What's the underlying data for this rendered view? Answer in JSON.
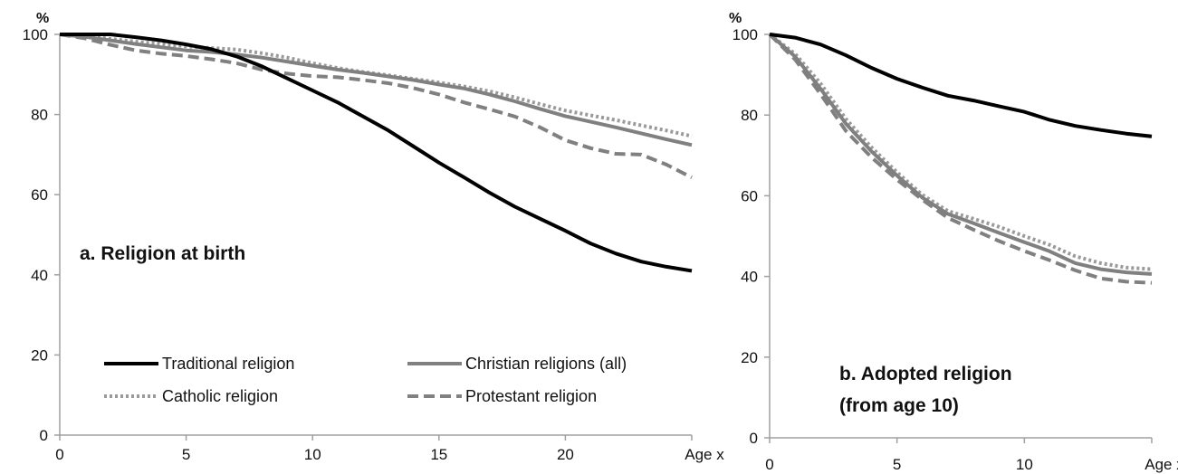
{
  "chart_data": [
    {
      "type": "line",
      "title": "a. Religion at birth",
      "xlabel": "Age x",
      "ylabel": "%",
      "xlim": [
        0,
        25
      ],
      "ylim": [
        0,
        100
      ],
      "xticks": [
        "0",
        "5",
        "10",
        "15",
        "20",
        "Age x"
      ],
      "yticks": [
        "0",
        "20",
        "40",
        "60",
        "80",
        "100"
      ],
      "grid": false,
      "legend_position": "bottom",
      "series": [
        {
          "name": "Traditional religion",
          "style": "solid",
          "color": "#000000",
          "x": [
            0,
            1,
            2,
            3,
            4,
            5,
            6,
            7,
            8,
            9,
            10,
            11,
            12,
            13,
            14,
            15,
            16,
            17,
            18,
            19,
            20,
            21,
            22,
            23,
            24,
            25
          ],
          "y": [
            100,
            100,
            100,
            99.3,
            98.5,
            97.5,
            96.3,
            94.5,
            92,
            89,
            86,
            83,
            79.5,
            76,
            72,
            68,
            64.3,
            60.5,
            57,
            54,
            51,
            47.8,
            45.3,
            43.3,
            42,
            41
          ]
        },
        {
          "name": "Christian religions (all)",
          "style": "solid",
          "color": "#808080",
          "x": [
            0,
            1,
            2,
            3,
            4,
            5,
            6,
            7,
            8,
            9,
            10,
            11,
            12,
            13,
            14,
            15,
            16,
            17,
            18,
            19,
            20,
            21,
            22,
            23,
            24,
            25
          ],
          "y": [
            100,
            99.4,
            98.5,
            97.6,
            96.8,
            96,
            95.6,
            95,
            94.2,
            93.2,
            92.2,
            91.2,
            90.4,
            89.5,
            88.6,
            87.5,
            86.5,
            85,
            83.3,
            81.4,
            79.6,
            78.2,
            76.8,
            75.3,
            73.8,
            72.4
          ]
        },
        {
          "name": "Catholic religion",
          "style": "dotted",
          "color": "#9a9a9a",
          "x": [
            0,
            1,
            2,
            3,
            4,
            5,
            6,
            7,
            8,
            9,
            10,
            11,
            12,
            13,
            14,
            15,
            16,
            17,
            18,
            19,
            20,
            21,
            22,
            23,
            24,
            25
          ],
          "y": [
            100,
            99.6,
            98.9,
            98.2,
            97.6,
            97,
            96.6,
            96.2,
            95.3,
            94.2,
            92.8,
            91.6,
            90.6,
            89.8,
            88.9,
            88,
            87,
            85.8,
            84.3,
            82.6,
            81,
            79.8,
            78.6,
            77.3,
            76,
            74.6
          ]
        },
        {
          "name": "Protestant religion",
          "style": "dashed",
          "color": "#808080",
          "x": [
            0,
            1,
            2,
            3,
            4,
            5,
            6,
            7,
            8,
            9,
            10,
            11,
            12,
            13,
            14,
            15,
            16,
            17,
            18,
            19,
            20,
            21,
            22,
            23,
            24,
            25
          ],
          "y": [
            100,
            99,
            97.4,
            96,
            95.2,
            94.6,
            93.8,
            92.8,
            91.2,
            90.2,
            89.6,
            89.3,
            88.6,
            87.8,
            86.6,
            85,
            83,
            81.3,
            79.5,
            76.8,
            73.6,
            71.6,
            70.2,
            70,
            67.5,
            64.3
          ]
        }
      ]
    },
    {
      "type": "line",
      "title": "b. Adopted religion (from age 10)",
      "title_lines": [
        "b. Adopted religion",
        "(from age 10)"
      ],
      "xlabel": "Age x",
      "ylabel": "%",
      "xlim": [
        0,
        15
      ],
      "ylim": [
        0,
        100
      ],
      "xticks": [
        "0",
        "5",
        "10",
        "Age x"
      ],
      "yticks": [
        "0",
        "20",
        "40",
        "60",
        "80",
        "100"
      ],
      "grid": false,
      "series": [
        {
          "name": "Traditional religion",
          "style": "solid",
          "color": "#000000",
          "x": [
            0,
            1,
            2,
            3,
            4,
            5,
            6,
            7,
            8,
            9,
            10,
            11,
            12,
            13,
            14,
            15
          ],
          "y": [
            100,
            99.2,
            97.5,
            94.8,
            91.7,
            89,
            86.8,
            84.8,
            83.6,
            82.2,
            80.8,
            78.8,
            77.3,
            76.3,
            75.4,
            74.7
          ]
        },
        {
          "name": "Christian religions (all)",
          "style": "solid",
          "color": "#808080",
          "x": [
            0,
            1,
            2,
            3,
            4,
            5,
            6,
            7,
            8,
            9,
            10,
            11,
            12,
            13,
            14,
            15
          ],
          "y": [
            100,
            94.5,
            86.5,
            77.8,
            71,
            65,
            59.5,
            55.5,
            53.2,
            50.8,
            48.5,
            46.2,
            43.3,
            41.8,
            41,
            40.6
          ]
        },
        {
          "name": "Catholic religion",
          "style": "dotted",
          "color": "#9a9a9a",
          "x": [
            0,
            1,
            2,
            3,
            4,
            5,
            6,
            7,
            8,
            9,
            10,
            11,
            12,
            13,
            14,
            15
          ],
          "y": [
            100,
            95.2,
            87.8,
            79,
            72,
            65.8,
            60.2,
            56.2,
            54.3,
            52.3,
            50,
            47.8,
            45,
            43.3,
            42.2,
            41.8
          ]
        },
        {
          "name": "Protestant religion",
          "style": "dashed",
          "color": "#808080",
          "x": [
            0,
            1,
            2,
            3,
            4,
            5,
            6,
            7,
            8,
            9,
            10,
            11,
            12,
            13,
            14,
            15
          ],
          "y": [
            100,
            93.8,
            85.2,
            76,
            69.5,
            64,
            59,
            54.5,
            51.6,
            48.8,
            46.3,
            44,
            41.5,
            39.5,
            38.7,
            38.4
          ]
        }
      ]
    }
  ]
}
